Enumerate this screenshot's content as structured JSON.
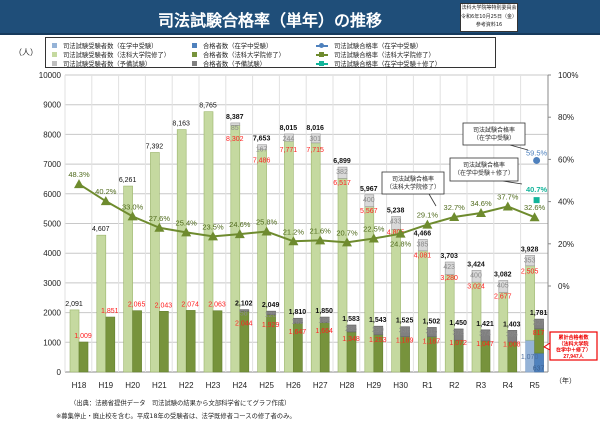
{
  "header": {
    "title": "司法試験合格率（単年）の推移",
    "ref_lines": [
      "法科大学院等特別委員会",
      "令和6年10月25日（金）",
      "参考資料16"
    ]
  },
  "legend": [
    {
      "label": "司法試験受験者数（在学中受験）",
      "color": "#95b3d7",
      "marker": "square"
    },
    {
      "label": "司法試験受験者数（法科大学院修了）",
      "color": "#c5d9a0",
      "marker": "square"
    },
    {
      "label": "司法試験受験者数（予備試験）",
      "color": "#bfbfbf",
      "marker": "square"
    },
    {
      "label": "合格者数（在学中受験）",
      "color": "#4f81bd",
      "marker": "square"
    },
    {
      "label": "合格者数（法科大学院修了）",
      "color": "#77933c",
      "marker": "square"
    },
    {
      "label": "合格者数（予備試験）",
      "color": "#808080",
      "marker": "square"
    },
    {
      "label": "司法試験合格率（在学中受験）",
      "color": "#4f81bd",
      "marker": "circle-line"
    },
    {
      "label": "司法試験合格率（法科大学院修了）",
      "color": "#6e8b2e",
      "marker": "triangle-line"
    },
    {
      "label": "司法試験合格率（在学中受験＋修了）",
      "color": "#13b49a",
      "marker": "square-line"
    }
  ],
  "footer": {
    "source": "（出典：法務省提供データ　司法試験の結果から文部科学省にてグラフ作成）",
    "note": "※募集停止・廃止校を含む。平成18年の受験者は、法学既修者コースの修了者のみ。"
  },
  "chart_data": {
    "type": "bar",
    "ylabel": "（人）",
    "xlabel": "（年）",
    "ylim": [
      0,
      10000
    ],
    "y_ticks": [
      "0",
      "1000",
      "2000",
      "3000",
      "4000",
      "5000",
      "6000",
      "7000",
      "8000",
      "9000",
      "10000"
    ],
    "y2lim": [
      0,
      100
    ],
    "y2_ticks": [
      "0%",
      "20%",
      "40%",
      "60%",
      "80%",
      "100%"
    ],
    "grid": true,
    "categories": [
      "H18",
      "H19",
      "H20",
      "H21",
      "H22",
      "H23",
      "H24",
      "H25",
      "H26",
      "H27",
      "H28",
      "H29",
      "H30",
      "R1",
      "R2",
      "R3",
      "R4",
      "R5"
    ],
    "examinees": {
      "total": [
        2091,
        4607,
        6261,
        7392,
        8163,
        8765,
        8387,
        7653,
        8015,
        8016,
        6899,
        5967,
        5238,
        4466,
        3703,
        3424,
        3082,
        3928
      ],
      "graduates": [
        2091,
        4607,
        6261,
        7392,
        8163,
        8765,
        8302,
        7486,
        7771,
        7715,
        6517,
        5567,
        4805,
        4081,
        3280,
        3024,
        2677,
        2505
      ],
      "preliminary": [
        0,
        0,
        0,
        0,
        0,
        0,
        85,
        167,
        244,
        301,
        382,
        400,
        433,
        385,
        423,
        400,
        405,
        353
      ],
      "in_school": [
        0,
        0,
        0,
        0,
        0,
        0,
        0,
        0,
        0,
        0,
        0,
        0,
        0,
        0,
        0,
        0,
        0,
        1070
      ]
    },
    "passers": {
      "total": [
        1009,
        1851,
        2065,
        2043,
        2074,
        2063,
        2102,
        2049,
        1810,
        1850,
        1583,
        1543,
        1525,
        1502,
        1450,
        1421,
        1403,
        1781
      ],
      "graduates": [
        1009,
        1851,
        2065,
        2043,
        2074,
        2063,
        2044,
        1929,
        1647,
        1664,
        1348,
        1253,
        1189,
        1187,
        1072,
        1047,
        1008,
        817
      ],
      "preliminary": [
        0,
        0,
        0,
        0,
        0,
        0,
        58,
        120,
        163,
        186,
        235,
        290,
        336,
        315,
        378,
        374,
        395,
        327
      ],
      "in_school": [
        0,
        0,
        0,
        0,
        0,
        0,
        0,
        0,
        0,
        0,
        0,
        0,
        0,
        0,
        0,
        0,
        0,
        637
      ]
    },
    "pass_rate_graduates": [
      48.3,
      40.2,
      33.0,
      27.6,
      25.4,
      23.5,
      24.6,
      25.8,
      21.2,
      21.6,
      20.7,
      22.5,
      24.8,
      29.1,
      32.7,
      34.6,
      37.7,
      32.6
    ],
    "pass_rate_in_school": {
      "category": "R5",
      "value": 59.5
    },
    "pass_rate_combined": {
      "category": "R5",
      "value": 40.7
    },
    "callouts": [
      {
        "lines": [
          "司法試験合格率",
          "（在学中受験）"
        ]
      },
      {
        "lines": [
          "司法試験合格率",
          "（在学中受験＋修了）"
        ]
      },
      {
        "lines": [
          "司法試験合格率",
          "（法科大学院修了）"
        ]
      }
    ],
    "cumulative_note": {
      "lines": [
        "累計合格者数",
        "（法科大学院",
        "在学中＋修了）",
        "27,947人"
      ]
    }
  }
}
